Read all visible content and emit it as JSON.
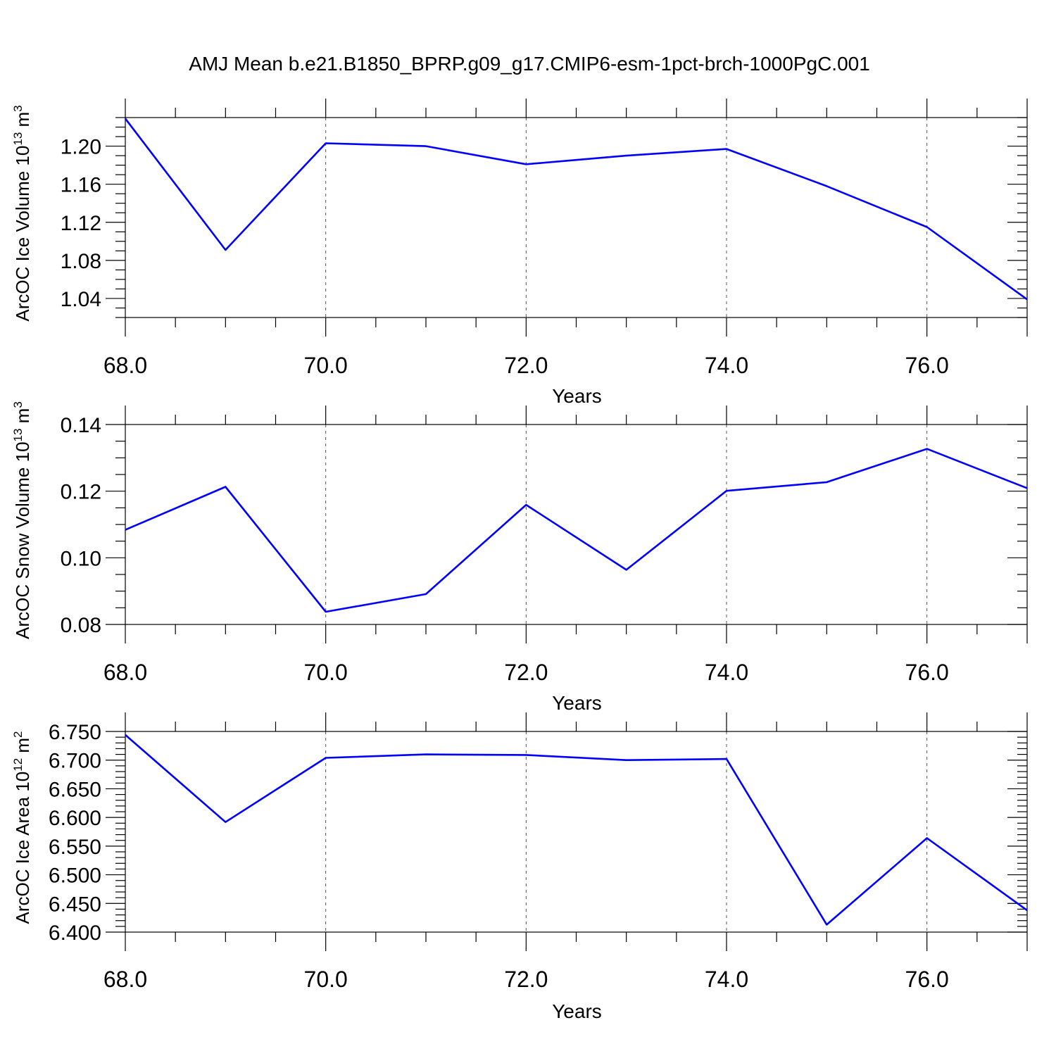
{
  "figure_title": "AMJ Mean b.e21.B1850_BPRP.g09_g17.CMIP6-esm-1pct-brch-1000PgC.001",
  "colors": {
    "series": "#0000ff",
    "axis": "#000000",
    "grid": "#555555"
  },
  "chart_data": [
    {
      "type": "line",
      "title": "",
      "xlabel": "Years",
      "ylabel": {
        "text": "ArcOC Ice Volume 10",
        "exponent": "13",
        "unit": " m",
        "unit_exponent": "3"
      },
      "x": [
        68,
        69,
        70,
        71,
        72,
        73,
        74,
        75,
        76,
        77
      ],
      "series": [
        {
          "values": [
            1.229,
            1.091,
            1.203,
            1.2,
            1.181,
            1.19,
            1.197,
            1.158,
            1.115,
            1.039
          ]
        }
      ],
      "xlim": [
        68,
        77
      ],
      "ylim": [
        1.02,
        1.23
      ],
      "x_major_ticks": [
        68,
        70,
        72,
        74,
        76
      ],
      "x_tick_labels": [
        "68.0",
        "70.0",
        "72.0",
        "74.0",
        "76.0"
      ],
      "x_minor_step": 0.5,
      "y_major_ticks": [
        1.04,
        1.08,
        1.12,
        1.16,
        1.2
      ],
      "y_tick_labels": [
        "1.04",
        "1.08",
        "1.12",
        "1.16",
        "1.20"
      ],
      "y_minor_step": 0.01,
      "grid": "vertical dashed at major x ticks"
    },
    {
      "type": "line",
      "title": "",
      "xlabel": "Years",
      "ylabel": {
        "text": "ArcOC Snow Volume 10",
        "exponent": "13",
        "unit": " m",
        "unit_exponent": "3"
      },
      "x": [
        68,
        69,
        70,
        71,
        72,
        73,
        74,
        75,
        76,
        77
      ],
      "series": [
        {
          "values": [
            0.1084,
            0.1213,
            0.0838,
            0.0891,
            0.1159,
            0.0964,
            0.1201,
            0.1227,
            0.1327,
            0.1209
          ]
        }
      ],
      "xlim": [
        68,
        77
      ],
      "ylim": [
        0.08,
        0.14
      ],
      "x_major_ticks": [
        68,
        70,
        72,
        74,
        76
      ],
      "x_tick_labels": [
        "68.0",
        "70.0",
        "72.0",
        "74.0",
        "76.0"
      ],
      "x_minor_step": 0.5,
      "y_major_ticks": [
        0.08,
        0.1,
        0.12,
        0.14
      ],
      "y_tick_labels": [
        "0.08",
        "0.10",
        "0.12",
        "0.14"
      ],
      "y_minor_step": 0.005,
      "grid": "vertical dashed at major x ticks"
    },
    {
      "type": "line",
      "title": "",
      "xlabel": "Years",
      "ylabel": {
        "text": "ArcOC Ice Area 10",
        "exponent": "12",
        "unit": " m",
        "unit_exponent": "2"
      },
      "x": [
        68,
        69,
        70,
        71,
        72,
        73,
        74,
        75,
        76,
        77
      ],
      "series": [
        {
          "values": [
            6.744,
            6.592,
            6.704,
            6.71,
            6.709,
            6.7,
            6.702,
            6.413,
            6.564,
            6.438
          ]
        }
      ],
      "xlim": [
        68,
        77
      ],
      "ylim": [
        6.4,
        6.75
      ],
      "x_major_ticks": [
        68,
        70,
        72,
        74,
        76
      ],
      "x_tick_labels": [
        "68.0",
        "70.0",
        "72.0",
        "74.0",
        "76.0"
      ],
      "x_minor_step": 0.5,
      "y_major_ticks": [
        6.4,
        6.45,
        6.5,
        6.55,
        6.6,
        6.65,
        6.7,
        6.75
      ],
      "y_tick_labels": [
        "6.400",
        "6.450",
        "6.500",
        "6.550",
        "6.600",
        "6.650",
        "6.700",
        "6.750"
      ],
      "y_minor_step": 0.01,
      "grid": "vertical dashed at major x ticks"
    }
  ]
}
